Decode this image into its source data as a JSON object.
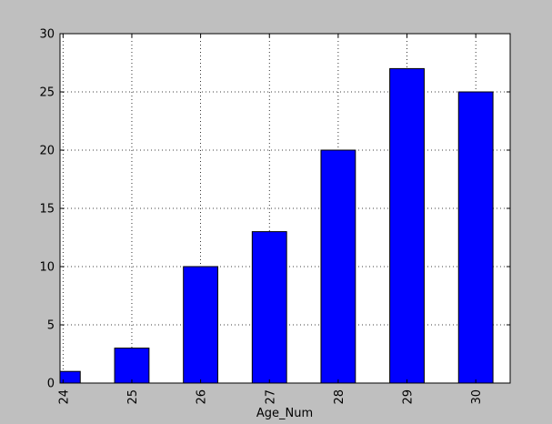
{
  "chart_data": {
    "type": "bar",
    "categories": [
      "24",
      "25",
      "26",
      "27",
      "28",
      "29",
      "30"
    ],
    "values": [
      1,
      3,
      10,
      13,
      20,
      27,
      25
    ],
    "xlabel": "Age_Num",
    "ylabel": "",
    "ylim": [
      0,
      30
    ],
    "yticks": [
      0,
      5,
      10,
      15,
      20,
      25,
      30
    ],
    "grid": true,
    "bar_color": "#0000ff",
    "background_color": "#bfbfbf",
    "plot_background_color": "#ffffff"
  }
}
